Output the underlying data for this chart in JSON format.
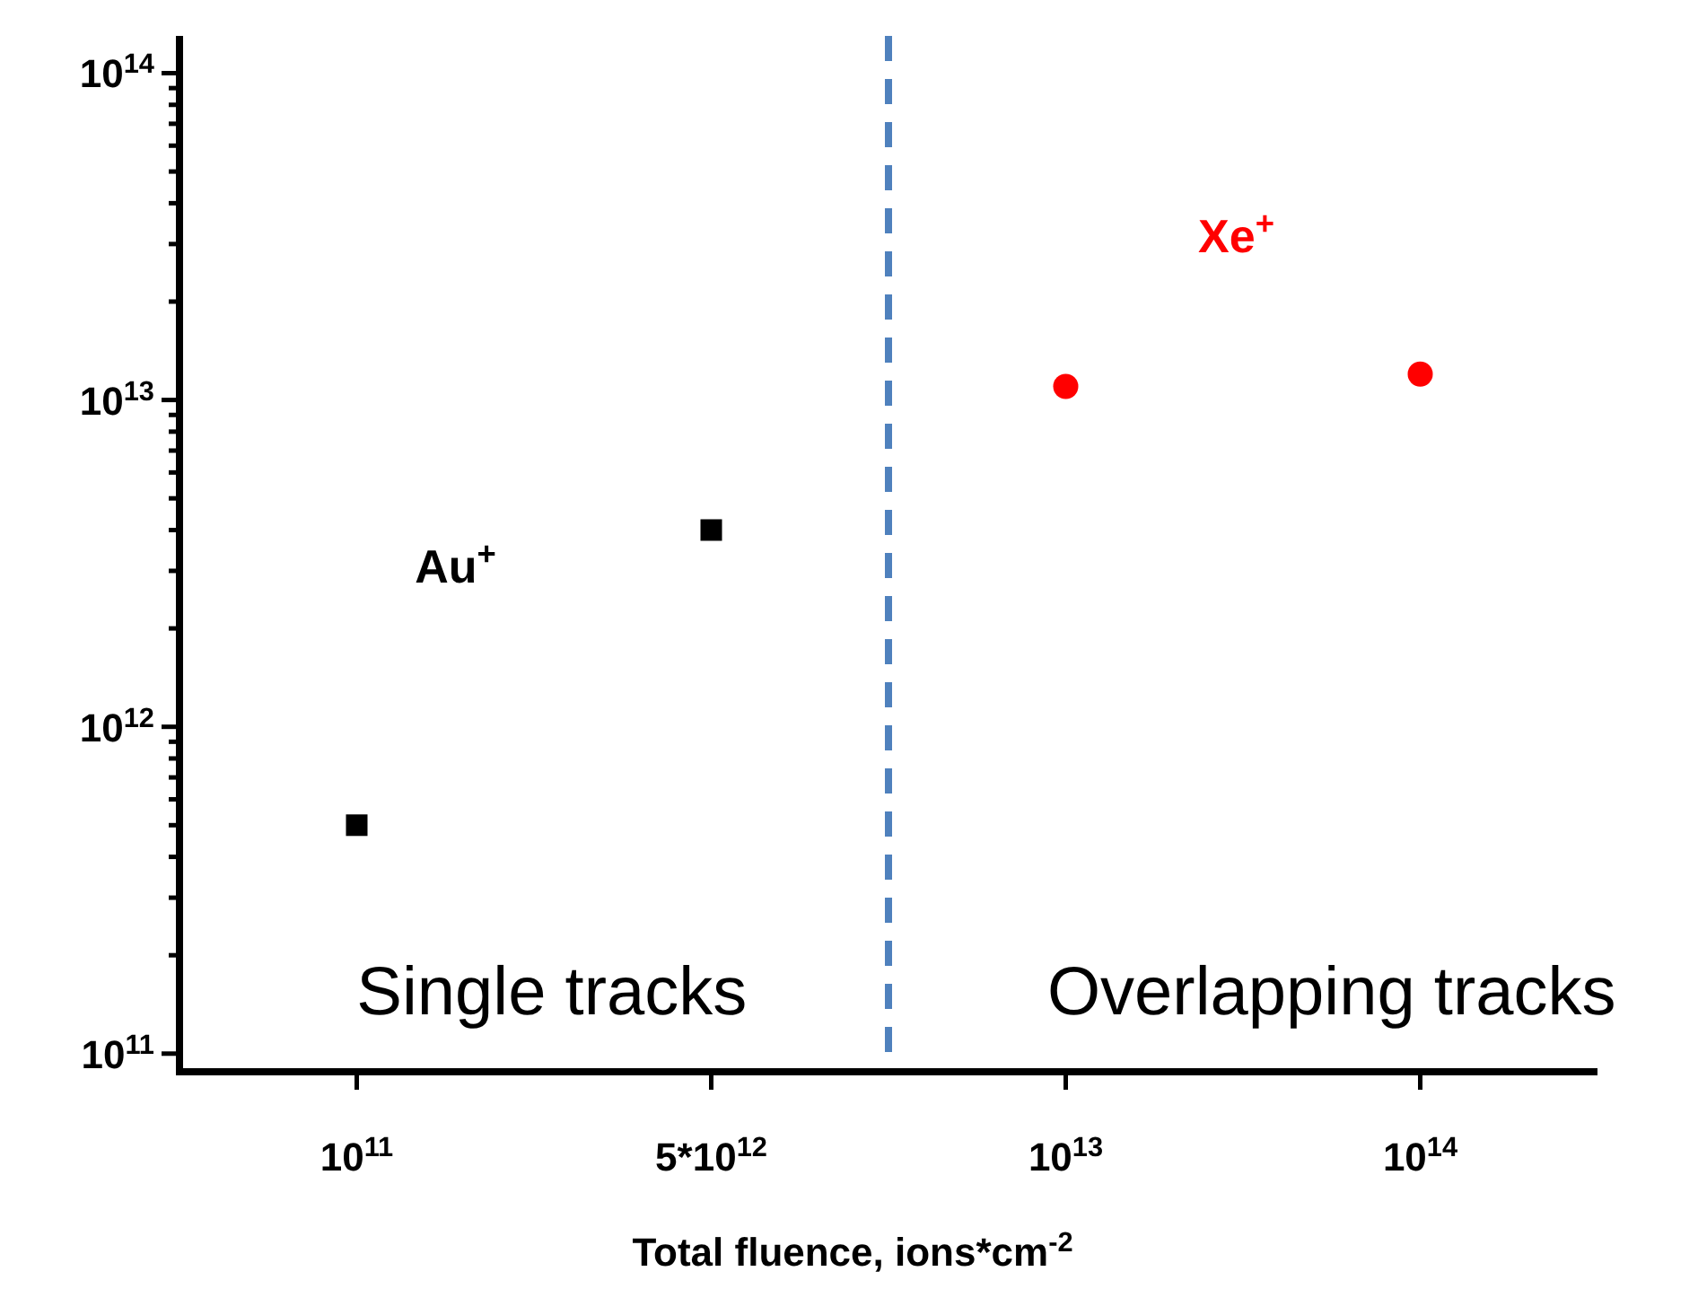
{
  "chart_data": {
    "type": "scatter",
    "xlabel": "Total fluence, ions*cm$^{-2}$",
    "categories": [
      "10$^{11}$",
      "5*10$^{12}$",
      "10$^{13}$",
      "10$^{14}$"
    ],
    "series": [
      {
        "name": "Au$^{+}$",
        "color": "#000000",
        "marker": "square",
        "values": [
          500000000000.0,
          4000000000000.0,
          null,
          null
        ]
      },
      {
        "name": "Xe$^{+}$",
        "color": "#ff0000",
        "marker": "circle",
        "values": [
          null,
          null,
          11000000000000.0,
          12000000000000.0
        ]
      }
    ],
    "log": "y",
    "ylim": [
      88000000000.0,
      130000000000000.0
    ],
    "yticks": [
      {
        "value": 100000000000.0,
        "label": "10$^{11}$"
      },
      {
        "value": 200000000000.0,
        "label": null
      },
      {
        "value": 300000000000.0,
        "label": null
      },
      {
        "value": 400000000000.0,
        "label": null
      },
      {
        "value": 500000000000.0,
        "label": null
      },
      {
        "value": 600000000000.0,
        "label": null
      },
      {
        "value": 700000000000.0,
        "label": null
      },
      {
        "value": 800000000000.0,
        "label": null
      },
      {
        "value": 900000000000.0,
        "label": null
      },
      {
        "value": 1000000000000.0,
        "label": "10$^{12}$"
      },
      {
        "value": 2000000000000.0,
        "label": null
      },
      {
        "value": 3000000000000.0,
        "label": null
      },
      {
        "value": 4000000000000.0,
        "label": null
      },
      {
        "value": 5000000000000.0,
        "label": null
      },
      {
        "value": 6000000000000.0,
        "label": null
      },
      {
        "value": 7000000000000.0,
        "label": null
      },
      {
        "value": 8000000000000.0,
        "label": null
      },
      {
        "value": 9000000000000.0,
        "label": null
      },
      {
        "value": 10000000000000.0,
        "label": "10$^{13}$"
      },
      {
        "value": 20000000000000.0,
        "label": null
      },
      {
        "value": 30000000000000.0,
        "label": null
      },
      {
        "value": 40000000000000.0,
        "label": null
      },
      {
        "value": 50000000000000.0,
        "label": null
      },
      {
        "value": 60000000000000.0,
        "label": null
      },
      {
        "value": 70000000000000.0,
        "label": null
      },
      {
        "value": 80000000000000.0,
        "label": null
      },
      {
        "value": 90000000000000.0,
        "label": null
      },
      {
        "value": 100000000000000.0,
        "label": "10$^{14}$"
      }
    ],
    "annotations": [
      "Single tracks",
      "Overlapping tracks"
    ],
    "grid": false
  }
}
